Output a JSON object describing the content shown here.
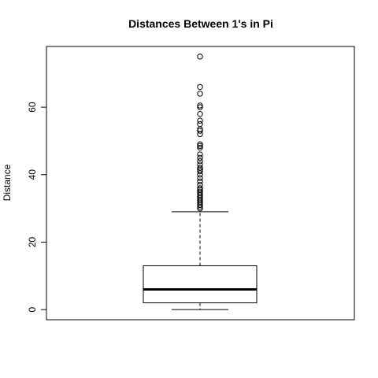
{
  "chart_data": {
    "type": "boxplot",
    "title": "Distances Between 1's in Pi",
    "xlabel": "",
    "ylabel": "Distance",
    "ylim": [
      -3,
      78
    ],
    "yticks": [
      0,
      20,
      40,
      60
    ],
    "grid": false,
    "legend": "none",
    "box": {
      "min": 0,
      "q1": 2,
      "median": 6,
      "q3": 13,
      "whisker_high": 29
    },
    "outliers": [
      30,
      30.5,
      31,
      31.5,
      32,
      32.5,
      33,
      33.5,
      34,
      34.5,
      35,
      35.5,
      36,
      37,
      38,
      39,
      40,
      41,
      41.5,
      42,
      43,
      44,
      45,
      46,
      48,
      48.5,
      49,
      52,
      53,
      53.5,
      55,
      56,
      58,
      60,
      60.5,
      64,
      66,
      75
    ]
  },
  "colors": {
    "stroke": "#000000",
    "background": "#ffffff"
  }
}
